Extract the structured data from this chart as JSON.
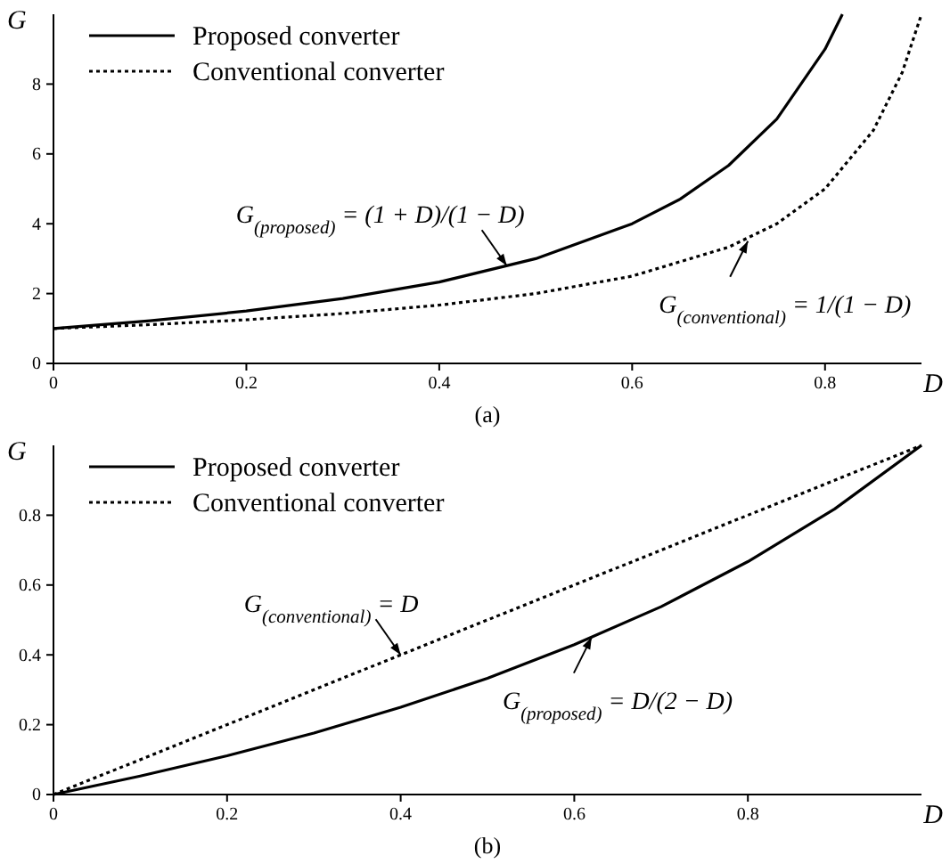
{
  "chart_data": [
    {
      "type": "line",
      "xlabel": "D",
      "ylabel": "G",
      "xlim": [
        0,
        0.9
      ],
      "ylim": [
        0,
        10
      ],
      "xticks": [
        0,
        0.2,
        0.4,
        0.6,
        0.8
      ],
      "yticks": [
        0,
        2,
        4,
        6,
        8
      ],
      "legend": "top left",
      "marker": "none",
      "grid": false,
      "series": [
        {
          "name": "Proposed converter",
          "color": "#000000",
          "line_style": "solid",
          "x": [
            0,
            0.1,
            0.2,
            0.3,
            0.4,
            0.5,
            0.6,
            0.65,
            0.7,
            0.75,
            0.8,
            0.818
          ],
          "values": [
            1,
            1.22,
            1.5,
            1.86,
            2.33,
            3,
            4,
            4.71,
            5.67,
            7,
            9,
            10
          ]
        },
        {
          "name": "Conventional converter",
          "color": "#000000",
          "line_style": "dotted",
          "x": [
            0,
            0.1,
            0.2,
            0.3,
            0.4,
            0.5,
            0.6,
            0.7,
            0.75,
            0.8,
            0.85,
            0.88,
            0.9
          ],
          "values": [
            1,
            1.11,
            1.25,
            1.43,
            1.67,
            2,
            2.5,
            3.33,
            4,
            5,
            6.67,
            8.33,
            10
          ]
        }
      ],
      "annotations": [
        {
          "text": "G$_{(proposed)}$ = (1 + D)/(1 − D)",
          "x": 0.47,
          "y": 2.8
        },
        {
          "text": "G$_{(conventional)}$ = 1/(1 − D)",
          "x": 0.72,
          "y": 3.5
        },
        "(a)"
      ]
    },
    {
      "type": "line",
      "xlabel": "D",
      "ylabel": "G",
      "xlim": [
        0,
        1
      ],
      "ylim": [
        0,
        1
      ],
      "xticks": [
        0,
        0.2,
        0.4,
        0.6,
        0.8
      ],
      "yticks": [
        0,
        0.2,
        0.4,
        0.6,
        0.8
      ],
      "legend": "top left",
      "marker": "none",
      "grid": false,
      "series": [
        {
          "name": "Proposed converter",
          "color": "#000000",
          "line_style": "solid",
          "x": [
            0,
            0.1,
            0.2,
            0.3,
            0.4,
            0.5,
            0.6,
            0.7,
            0.8,
            0.9,
            1
          ],
          "values": [
            0,
            0.053,
            0.111,
            0.176,
            0.25,
            0.333,
            0.429,
            0.538,
            0.667,
            0.818,
            1
          ]
        },
        {
          "name": "Conventional converter",
          "color": "#000000",
          "line_style": "dotted",
          "x": [
            0,
            1
          ],
          "values": [
            0,
            1
          ]
        }
      ],
      "annotations": [
        {
          "text": "G$_{(conventional)}$ = D",
          "x": 0.4,
          "y": 0.4
        },
        {
          "text": "G$_{(proposed)}$ = D/(2 − D)",
          "x": 0.62,
          "y": 0.45
        },
        "(b)"
      ]
    }
  ]
}
